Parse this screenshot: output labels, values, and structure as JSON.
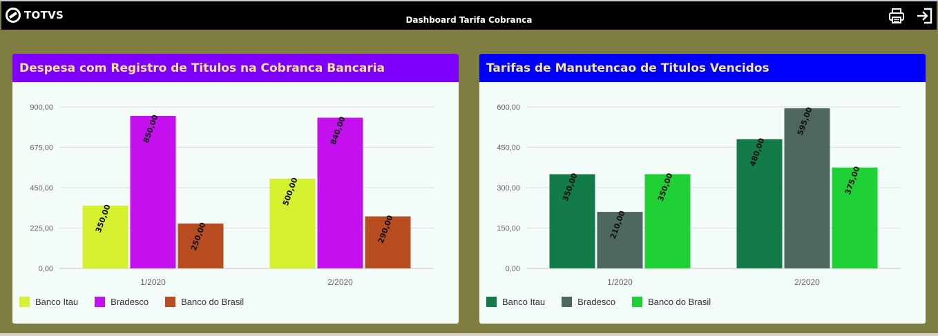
{
  "header": {
    "logo_text": "TOTVS",
    "title": "Dashboard Tarifa Cobranca",
    "icons": [
      "printer-icon",
      "logout-icon"
    ]
  },
  "panels": [
    {
      "title": "Despesa com Registro de Titulos na Cobranca Bancaria",
      "header_color": "#8000ff"
    },
    {
      "title": "Tarifas de Manutencao de Titulos Vencidos",
      "header_color": "#0000ff"
    }
  ],
  "chart_data": [
    {
      "type": "bar",
      "categories": [
        "1/2020",
        "2/2020"
      ],
      "series": [
        {
          "name": "Banco Itau",
          "color": "#d4f02e",
          "values": [
            350,
            500
          ]
        },
        {
          "name": "Bradesco",
          "color": "#c510ef",
          "values": [
            850,
            840
          ]
        },
        {
          "name": "Banco do Brasil",
          "color": "#b84d21",
          "values": [
            250,
            290
          ]
        }
      ],
      "value_labels": [
        [
          "350,00",
          "500,00"
        ],
        [
          "850,00",
          "840,00"
        ],
        [
          "250,00",
          "290,00"
        ]
      ],
      "yticks": [
        0,
        225,
        450,
        675,
        900
      ],
      "ytick_labels": [
        "0,00",
        "225,00",
        "450,00",
        "675,00",
        "900,00"
      ],
      "ylim": [
        0,
        900
      ],
      "grid": true,
      "legend": "bottom-left"
    },
    {
      "type": "bar",
      "categories": [
        "1/2020",
        "2/2020"
      ],
      "series": [
        {
          "name": "Banco Itau",
          "color": "#137b47",
          "values": [
            350,
            480
          ]
        },
        {
          "name": "Bradesco",
          "color": "#4d665e",
          "values": [
            210,
            595
          ]
        },
        {
          "name": "Banco do Brasil",
          "color": "#20d136",
          "values": [
            350,
            375
          ]
        }
      ],
      "value_labels": [
        [
          "350,00",
          "480,00"
        ],
        [
          "210,00",
          "595,00"
        ],
        [
          "350,00",
          "375,00"
        ]
      ],
      "yticks": [
        0,
        150,
        300,
        450,
        600
      ],
      "ytick_labels": [
        "0,00",
        "150,00",
        "300,00",
        "450,00",
        "600,00"
      ],
      "ylim": [
        0,
        600
      ],
      "grid": true,
      "legend": "bottom-left"
    }
  ]
}
